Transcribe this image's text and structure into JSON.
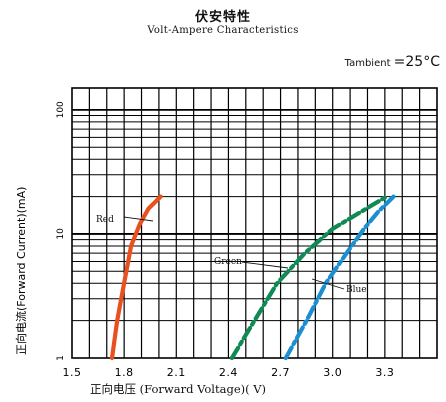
{
  "chart_data": {
    "type": "line",
    "title": "伏安特性",
    "subtitle": "Volt-Ampere Characteristics",
    "ambient": {
      "label": "Tambient",
      "value": "=25°C"
    },
    "xlabel": {
      "cn": "正向电压",
      "en": " (Forward Voltage)( V)"
    },
    "ylabel": "正向电流(Forward Current)(mA)",
    "x_ticks": [
      "1.5",
      "1.8",
      "2.1",
      "2.4",
      "2.7",
      "3.0",
      "3.3"
    ],
    "y_ticks": [
      "1",
      "10",
      "100"
    ],
    "xlim": [
      1.5,
      3.6
    ],
    "ylim": [
      1,
      150
    ],
    "y_scale": "log",
    "grid": true,
    "series": [
      {
        "name": "Red",
        "color": "#e8501f",
        "dash": "solid",
        "points": [
          [
            1.73,
            1
          ],
          [
            1.76,
            2
          ],
          [
            1.8,
            4
          ],
          [
            1.84,
            8
          ],
          [
            1.89,
            12
          ],
          [
            1.94,
            16
          ],
          [
            2.01,
            20
          ]
        ]
      },
      {
        "name": "Green",
        "color": "#0f8a55",
        "dash": "dashdot",
        "points": [
          [
            2.42,
            1
          ],
          [
            2.55,
            2
          ],
          [
            2.68,
            4
          ],
          [
            2.84,
            7
          ],
          [
            3.0,
            11
          ],
          [
            3.16,
            15
          ],
          [
            3.31,
            20
          ]
        ]
      },
      {
        "name": "Blue",
        "color": "#1c8fd2",
        "dash": "dashdot",
        "points": [
          [
            2.73,
            1
          ],
          [
            2.85,
            2
          ],
          [
            2.96,
            4
          ],
          [
            3.08,
            7
          ],
          [
            3.18,
            11
          ],
          [
            3.26,
            15
          ],
          [
            3.35,
            20
          ]
        ]
      }
    ]
  }
}
